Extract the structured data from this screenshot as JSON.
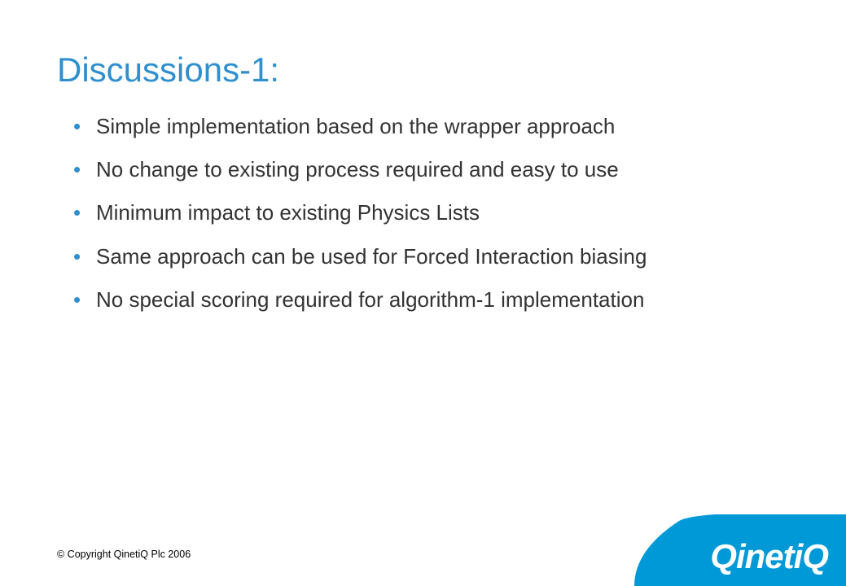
{
  "colors": {
    "title": "#2f8fcf",
    "bullet_marker": "#2f8fcf",
    "body_text": "#333333",
    "logo_bg": "#0099d8",
    "logo_text": "#ffffff",
    "copyright": "#000000",
    "background": "#ffffff"
  },
  "typography": {
    "title_fontsize": 42,
    "body_fontsize": 26,
    "copyright_fontsize": 12.5,
    "logo_fontsize": 42
  },
  "title": "Discussions-1:",
  "bullets": [
    "Simple implementation based on the wrapper approach",
    "No change to existing process required and easy to use",
    "Minimum impact to existing Physics Lists",
    "Same approach can be used for Forced Interaction biasing",
    "No special scoring required for algorithm-1 implementation"
  ],
  "copyright": "© Copyright QinetiQ Plc 2006",
  "logo": "QinetiQ"
}
